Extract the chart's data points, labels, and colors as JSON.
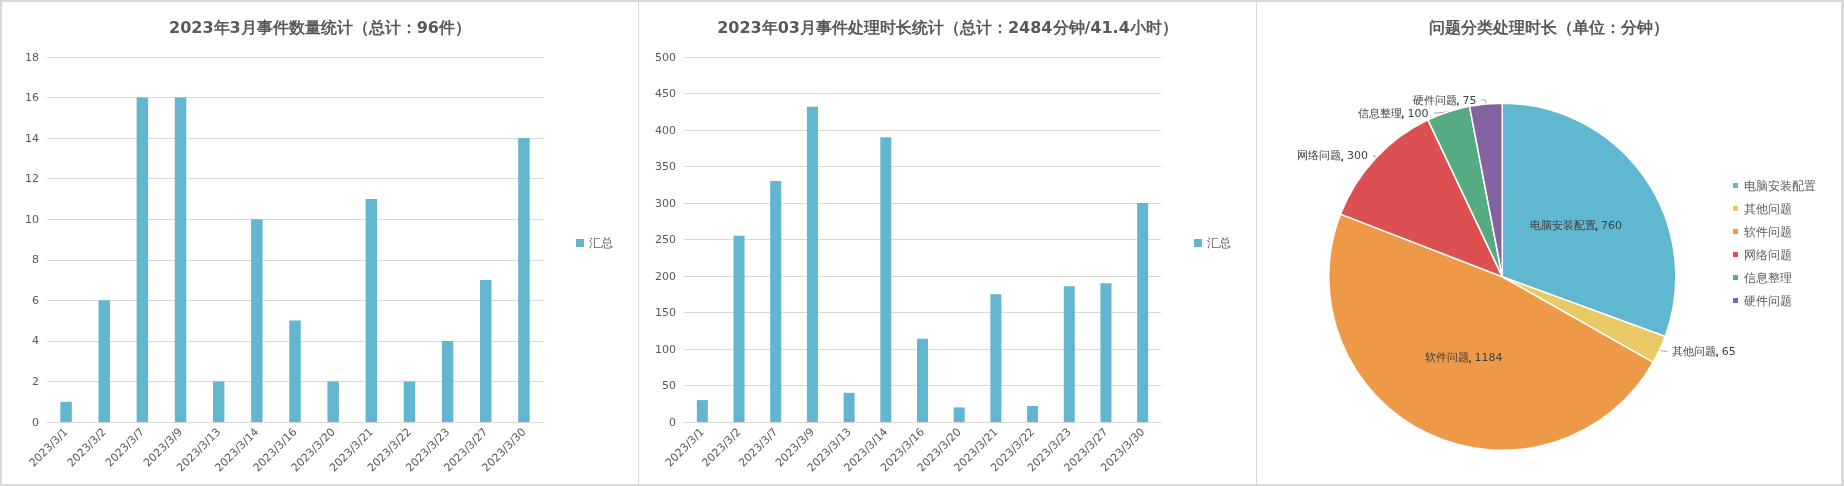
{
  "chart_data": [
    {
      "type": "bar",
      "title": "2023年3月事件数量统计（总计：96件）",
      "categories": [
        "2023/3/1",
        "2023/3/2",
        "2023/3/7",
        "2023/3/9",
        "2023/3/13",
        "2023/3/14",
        "2023/3/16",
        "2023/3/20",
        "2023/3/21",
        "2023/3/22",
        "2023/3/23",
        "2023/3/27",
        "2023/3/30"
      ],
      "series": [
        {
          "name": "汇总",
          "color": "#62b6cf",
          "values": [
            1,
            6,
            16,
            16,
            2,
            10,
            5,
            2,
            11,
            2,
            4,
            7,
            14
          ]
        }
      ],
      "ylim": [
        0,
        18
      ],
      "yticks": [
        0,
        2,
        4,
        6,
        8,
        10,
        12,
        14,
        16,
        18
      ],
      "grid": "y",
      "legend": "right"
    },
    {
      "type": "bar",
      "title": "2023年03月事件处理时长统计（总计：2484分钟/41.4小时）",
      "categories": [
        "2023/3/1",
        "2023/3/2",
        "2023/3/7",
        "2023/3/9",
        "2023/3/13",
        "2023/3/14",
        "2023/3/16",
        "2023/3/20",
        "2023/3/21",
        "2023/3/22",
        "2023/3/23",
        "2023/3/27",
        "2023/3/30"
      ],
      "series": [
        {
          "name": "汇总",
          "color": "#62b6cf",
          "values": [
            30,
            255,
            330,
            432,
            40,
            390,
            114,
            20,
            175,
            22,
            186,
            190,
            300
          ]
        }
      ],
      "ylim": [
        0,
        500
      ],
      "yticks": [
        0,
        50,
        100,
        150,
        200,
        250,
        300,
        350,
        400,
        450,
        500
      ],
      "grid": "y",
      "legend": "right"
    },
    {
      "type": "pie",
      "title": "问题分类处理时长（单位：分钟）",
      "categories": [
        "电脑安装配置",
        "其他问题",
        "软件问题",
        "网络问题",
        "信息整理",
        "硬件问题"
      ],
      "values": [
        760,
        65,
        1184,
        300,
        100,
        75
      ],
      "colors": [
        "#5fb7d0",
        "#e8c963",
        "#ee9948",
        "#dd5052",
        "#57ab83",
        "#8364a0"
      ],
      "data_labels": true,
      "legend": "right"
    }
  ]
}
